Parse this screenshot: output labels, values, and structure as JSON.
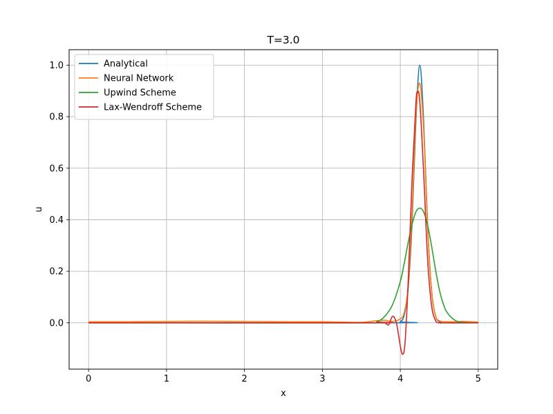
{
  "chart_data": {
    "type": "line",
    "title": "T=3.0",
    "xlabel": "x",
    "ylabel": "u",
    "xlim": [
      -0.25,
      5.25
    ],
    "ylim": [
      -0.18,
      1.06
    ],
    "xticks": [
      0,
      1,
      2,
      3,
      4,
      5
    ],
    "yticks": [
      0.0,
      0.2,
      0.4,
      0.6,
      0.8,
      1.0
    ],
    "xtick_labels": [
      "0",
      "1",
      "2",
      "3",
      "4",
      "5"
    ],
    "ytick_labels": [
      "0.0",
      "0.2",
      "0.4",
      "0.6",
      "0.8",
      "1.0"
    ],
    "grid": true,
    "legend_position": "top-left",
    "series": [
      {
        "name": "Analytical",
        "color": "#1f77b4",
        "x": [
          0,
          3.9,
          4.0,
          4.05,
          4.1,
          4.15,
          4.2,
          4.25,
          4.3,
          4.35,
          4.4,
          4.45,
          4.5,
          4.6,
          5.0
        ],
        "y": [
          0,
          0,
          0.005,
          0.03,
          0.13,
          0.38,
          0.78,
          1.0,
          0.78,
          0.38,
          0.13,
          0.03,
          0.005,
          0,
          0
        ]
      },
      {
        "name": "Neural Network",
        "color": "#ff7f0e",
        "x": [
          0,
          0.5,
          1.0,
          1.5,
          2.0,
          2.5,
          3.0,
          3.2,
          3.5,
          3.7,
          3.8,
          3.9,
          4.0,
          4.05,
          4.1,
          4.15,
          4.2,
          4.25,
          4.3,
          4.35,
          4.4,
          4.45,
          4.5,
          4.6,
          4.8,
          5.0
        ],
        "y": [
          0.004,
          0.004,
          0.005,
          0.006,
          0.005,
          0.004,
          0.004,
          0.003,
          0.002,
          0.008,
          0.01,
          0.005,
          0.015,
          0.04,
          0.14,
          0.42,
          0.8,
          0.93,
          0.75,
          0.38,
          0.13,
          0.03,
          0.008,
          0.004,
          0.005,
          0.003
        ]
      },
      {
        "name": "Upwind Scheme",
        "color": "#2ca02c",
        "x": [
          0,
          3.5,
          3.7,
          3.8,
          3.9,
          4.0,
          4.05,
          4.1,
          4.15,
          4.2,
          4.25,
          4.3,
          4.35,
          4.4,
          4.45,
          4.5,
          4.55,
          4.6,
          4.7,
          4.8,
          5.0
        ],
        "y": [
          0,
          0,
          0.005,
          0.025,
          0.07,
          0.16,
          0.23,
          0.31,
          0.38,
          0.43,
          0.445,
          0.43,
          0.38,
          0.3,
          0.21,
          0.13,
          0.075,
          0.04,
          0.01,
          0.002,
          0
        ]
      },
      {
        "name": "Lax-Wendroff Scheme",
        "color": "#d62728",
        "x": [
          0,
          3.6,
          3.7,
          3.8,
          3.85,
          3.9,
          3.95,
          4.0,
          4.03,
          4.06,
          4.1,
          4.15,
          4.2,
          4.22,
          4.25,
          4.3,
          4.35,
          4.4,
          4.45,
          4.5,
          4.6,
          5.0
        ],
        "y": [
          0,
          0,
          0.002,
          0.0,
          -0.008,
          0.025,
          0.0,
          -0.09,
          -0.122,
          -0.08,
          0.15,
          0.55,
          0.85,
          0.895,
          0.86,
          0.58,
          0.25,
          0.07,
          0.01,
          0.0,
          0.0,
          0
        ]
      }
    ]
  }
}
